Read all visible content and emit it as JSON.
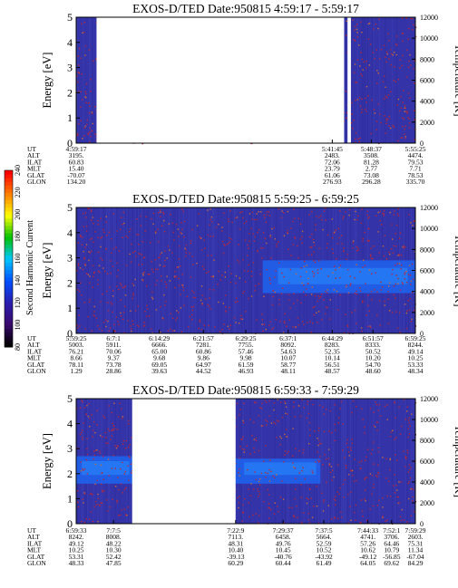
{
  "colors": {
    "background": "#3434a8",
    "dots": "#b5283c",
    "band": "#1e64f0",
    "band_bright": "#2a8cff",
    "gap": "#ffffff"
  },
  "colorbar": {
    "label": "Second Harmonic Current",
    "ticks": [
      "80",
      "100",
      "120",
      "140",
      "160",
      "180",
      "200",
      "220",
      "240"
    ],
    "colors": [
      "#000000",
      "#3a0a6e",
      "#2a1fb0",
      "#0050ff",
      "#00c8ff",
      "#00c000",
      "#ffff00",
      "#ff8000",
      "#ff0000"
    ]
  },
  "chart_data": [
    {
      "type": "heatmap",
      "title": "EXOS-D/TED   Date:950815  4:59:17 - 5:59:17",
      "ylabel": "Energy [eV]",
      "y2label": "Temperature [K]",
      "ylim": [
        0,
        5
      ],
      "y2lim": [
        0,
        12000
      ],
      "yticks": [
        "0",
        "1",
        "2",
        "3",
        "4",
        "5"
      ],
      "y2ticks": [
        "0",
        "2000",
        "4000",
        "6000",
        "8000",
        "10000",
        "12000"
      ],
      "data_gaps": [
        [
          0.06,
          0.79
        ],
        [
          0.8,
          0.81
        ]
      ],
      "band": null,
      "row_labels": [
        "UT",
        "ALT",
        "ILAT",
        "MLT",
        "GLAT",
        "GLON"
      ],
      "columns": [
        {
          "pos": 0.0,
          "values": [
            "4:59:17",
            "3195.",
            "60.83",
            "15.40",
            "-70.07",
            "134.20"
          ]
        },
        {
          "pos": 0.755,
          "values": [
            "5:41:45",
            "2483.",
            "72.06",
            "23.79",
            "61.06",
            "276.93"
          ]
        },
        {
          "pos": 0.87,
          "values": [
            "5:48:37",
            "3508.",
            "81.28",
            "2.77",
            "73.08",
            "296.28"
          ]
        },
        {
          "pos": 1.0,
          "values": [
            "5:55:25",
            "4474.",
            "79.53",
            "7.71",
            "78.53",
            "335.70"
          ]
        }
      ]
    },
    {
      "type": "heatmap",
      "title": "EXOS-D/TED   Date:950815  5:59:25 - 6:59:25",
      "ylabel": "Energy [eV]",
      "y2label": "Temperature [K]",
      "ylim": [
        0,
        5
      ],
      "y2lim": [
        0,
        12000
      ],
      "yticks": [
        "0",
        "1",
        "2",
        "3",
        "4",
        "5"
      ],
      "y2ticks": [
        "0",
        "2000",
        "4000",
        "6000",
        "8000",
        "10000",
        "12000"
      ],
      "data_gaps": [],
      "band": {
        "x_start": 0.55,
        "x_end": 1.0,
        "e_low": 1.6,
        "e_high": 2.9
      },
      "row_labels": [
        "UT",
        "ALT",
        "ILAT",
        "MLT",
        "GLAT",
        "GLON"
      ],
      "columns": [
        {
          "pos": 0.0,
          "values": [
            "5:59:25",
            "5003.",
            "76.21",
            "8.66",
            "78.11",
            "1.29"
          ]
        },
        {
          "pos": 0.11,
          "values": [
            "6:7:1",
            "5911.",
            "70.06",
            "9.37",
            "73.78",
            "28.86"
          ]
        },
        {
          "pos": 0.245,
          "values": [
            "6:14:29",
            "6666.",
            "65.00",
            "9.68",
            "69.05",
            "39.63"
          ]
        },
        {
          "pos": 0.375,
          "values": [
            "6:21:57",
            "7281.",
            "60.86",
            "9.86",
            "64.97",
            "44.52"
          ]
        },
        {
          "pos": 0.5,
          "values": [
            "6:29:25",
            "7755.",
            "57.46",
            "9.98",
            "61.59",
            "46.93"
          ]
        },
        {
          "pos": 0.625,
          "values": [
            "6:37:1",
            "8092.",
            "54.63",
            "10.07",
            "58.77",
            "48.11"
          ]
        },
        {
          "pos": 0.755,
          "values": [
            "6:44:29",
            "8283.",
            "52.35",
            "10.14",
            "56.51",
            "48.57"
          ]
        },
        {
          "pos": 0.875,
          "values": [
            "6:51:57",
            "8333.",
            "50.52",
            "10.20",
            "54.70",
            "48.60"
          ]
        },
        {
          "pos": 1.0,
          "values": [
            "6:59:25",
            "8244.",
            "49.14",
            "10.25",
            "53.33",
            "48.34"
          ]
        }
      ]
    },
    {
      "type": "heatmap",
      "title": "EXOS-D/TED   Date:950815  6:59:33 - 7:59:29",
      "ylabel": "Energy [eV]",
      "y2label": "Temperature [K]",
      "ylim": [
        0,
        5
      ],
      "y2lim": [
        0,
        12000
      ],
      "yticks": [
        "0",
        "1",
        "2",
        "3",
        "4",
        "5"
      ],
      "y2ticks": [
        "0",
        "2000",
        "4000",
        "6000",
        "8000",
        "10000",
        "12000"
      ],
      "data_gaps": [
        [
          0.165,
          0.47
        ]
      ],
      "band": {
        "x_start": 0.0,
        "x_end": 0.165,
        "e_low": 1.6,
        "e_high": 2.7
      },
      "band2": {
        "x_start": 0.47,
        "x_end": 0.72,
        "e_low": 1.6,
        "e_high": 2.6
      },
      "row_labels": [
        "UT",
        "ALT",
        "ILAT",
        "MLT",
        "GLAT",
        "GLON"
      ],
      "columns": [
        {
          "pos": 0.0,
          "values": [
            "6:59:33",
            "8242.",
            "49.12",
            "10.25",
            "53.31",
            "48.33"
          ]
        },
        {
          "pos": 0.11,
          "values": [
            "7:7:5",
            "8008.",
            "48.22",
            "10.30",
            "52.42",
            "47.85"
          ]
        },
        {
          "pos": 0.47,
          "values": [
            "7:22:9",
            "7113.",
            "48.31",
            "10.40",
            "-39.13",
            "60.29"
          ]
        },
        {
          "pos": 0.61,
          "values": [
            "7:29:37",
            "6458.",
            "49.76",
            "10.45",
            "-40.76",
            "60.44"
          ]
        },
        {
          "pos": 0.73,
          "values": [
            "7:37:5",
            "5664.",
            "52.59",
            "10.52",
            "-43.92",
            "61.49"
          ]
        },
        {
          "pos": 0.86,
          "values": [
            "7:44:33",
            "4741.",
            "57.26",
            "10.62",
            "-49.12",
            "64.05"
          ]
        },
        {
          "pos": 0.93,
          "values": [
            "7:52:1",
            "3706.",
            "64.46",
            "10.79",
            "-56.85",
            "69.62"
          ]
        },
        {
          "pos": 1.0,
          "values": [
            "7:59:29",
            "2603.",
            "75.31",
            "11.34",
            "-67.04",
            "84.29"
          ]
        }
      ]
    }
  ]
}
